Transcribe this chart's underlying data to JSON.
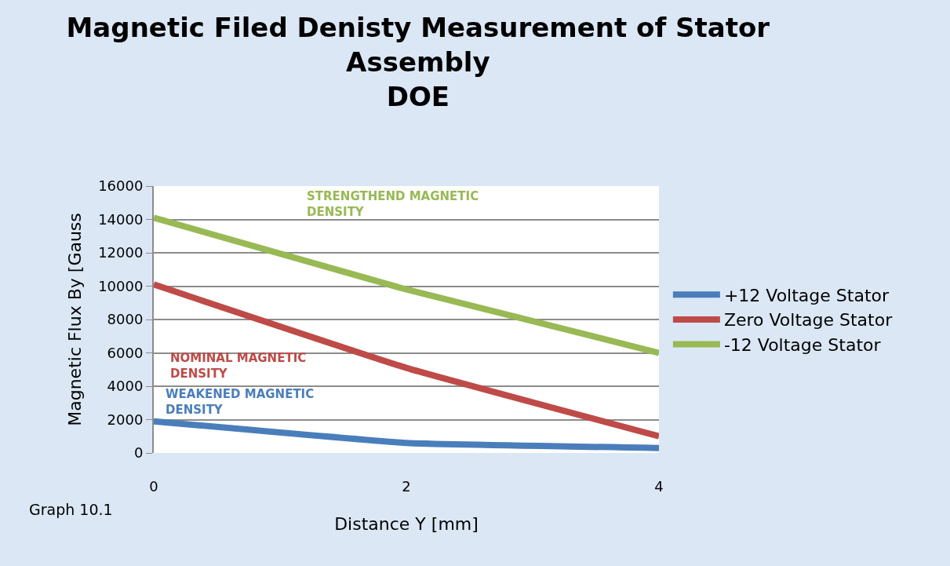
{
  "chart_data": {
    "type": "line",
    "title": "Magnetic Filed Denisty Measurement of Stator\nAssembly\nDOE",
    "xlabel": "Distance Y [mm]",
    "ylabel": "Magnetic Flux By [Gauss",
    "x": [
      0,
      2,
      4
    ],
    "series": [
      {
        "name": "+12 Voltage Stator",
        "color": "#4a7ebb",
        "values": [
          1900,
          600,
          300
        ]
      },
      {
        "name": "Zero Voltage Stator",
        "color": "#be4b48",
        "values": [
          10100,
          5100,
          1000
        ]
      },
      {
        "name": "-12 Voltage Stator",
        "color": "#98b954",
        "values": [
          14100,
          9800,
          6000
        ]
      }
    ],
    "xlim": [
      0,
      4
    ],
    "xticks": [
      0,
      2,
      4
    ],
    "ylim": [
      0,
      16000
    ],
    "yticks": [
      0,
      2000,
      4000,
      6000,
      8000,
      10000,
      12000,
      14000,
      16000
    ],
    "grid": "y",
    "legend": "right",
    "marker": "none",
    "line_style": "solid",
    "annotations": [
      "WEAKENED MAGNETIC\nDENSITY",
      "NOMINAL MAGNETIC\nDENSITY",
      "STRENGTHEND MAGNETIC\nDENSITY",
      "Graph 10.1"
    ]
  }
}
